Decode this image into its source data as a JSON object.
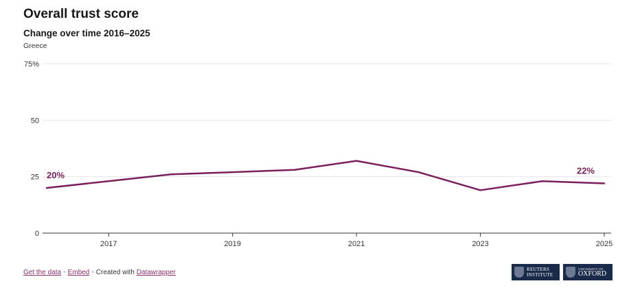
{
  "header": {
    "title": "Overall trust score",
    "subtitle": "Change over time 2016–2025",
    "note": "Greece"
  },
  "footer": {
    "get_data": "Get the data",
    "embed": "Embed",
    "created_with": "Created with",
    "tool": "Datawrapper",
    "logo_reuters": [
      "REUTERS",
      "INSTITUTE"
    ],
    "logo_oxford": [
      "UNIVERSITY OF",
      "OXFORD"
    ]
  },
  "colors": {
    "line": "#7a1f5c",
    "grid": "#e6e6e6",
    "axis": "#333333",
    "logo_bg": "#1a2a4a"
  },
  "chart_data": {
    "type": "line",
    "x": [
      2016,
      2017,
      2018,
      2019,
      2020,
      2021,
      2022,
      2023,
      2024,
      2025
    ],
    "series": [
      {
        "values": [
          20,
          23,
          26,
          27,
          28,
          32,
          27,
          19,
          23,
          22
        ]
      }
    ],
    "y_ticks": [
      "0",
      "25",
      "50",
      "75%"
    ],
    "y_tick_values": [
      0,
      25,
      50,
      75
    ],
    "x_ticks": [
      "2017",
      "2019",
      "2021",
      "2023",
      "2025"
    ],
    "x_tick_values": [
      2017,
      2019,
      2021,
      2023,
      2025
    ],
    "ylim": [
      0,
      75
    ],
    "xlim": [
      2016,
      2025
    ],
    "annotations": [
      {
        "text": "20%",
        "x": 2016,
        "y": 20
      },
      {
        "text": "22%",
        "x": 2025,
        "y": 22
      }
    ],
    "grid": true
  }
}
